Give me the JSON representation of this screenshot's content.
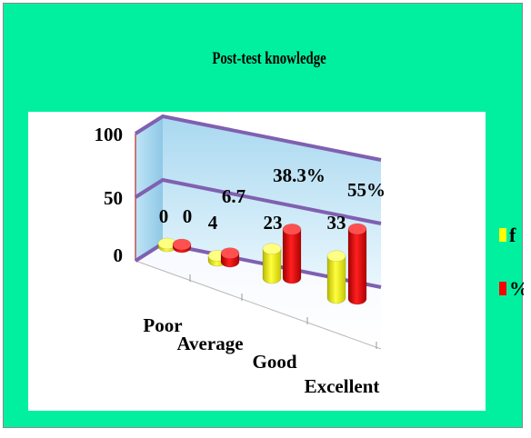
{
  "chart_data": {
    "type": "bar",
    "subtype": "3d-clustered-column-cylinder",
    "title": "Post-test knowledge",
    "categories": [
      "Poor",
      "Average",
      "Good",
      "Excellent"
    ],
    "series": [
      {
        "name": "f",
        "values": [
          0,
          4,
          23,
          33
        ],
        "labels": [
          "0",
          "4",
          "23",
          "33"
        ],
        "color": "#ffff00"
      },
      {
        "name": "%",
        "values": [
          0,
          6.7,
          38.3,
          55
        ],
        "labels": [
          "0",
          "6.7",
          "38.3%",
          "55%"
        ],
        "color": "#ff0000"
      }
    ],
    "yticks": [
      "0",
      "50",
      "100"
    ],
    "ylim": [
      0,
      100
    ],
    "grid": true,
    "legend": "right",
    "colors": {
      "background": "#00f0a0",
      "plot_area": "#ffffff",
      "walls": "#cfeaf8",
      "gridlines": "#8060b0"
    }
  }
}
